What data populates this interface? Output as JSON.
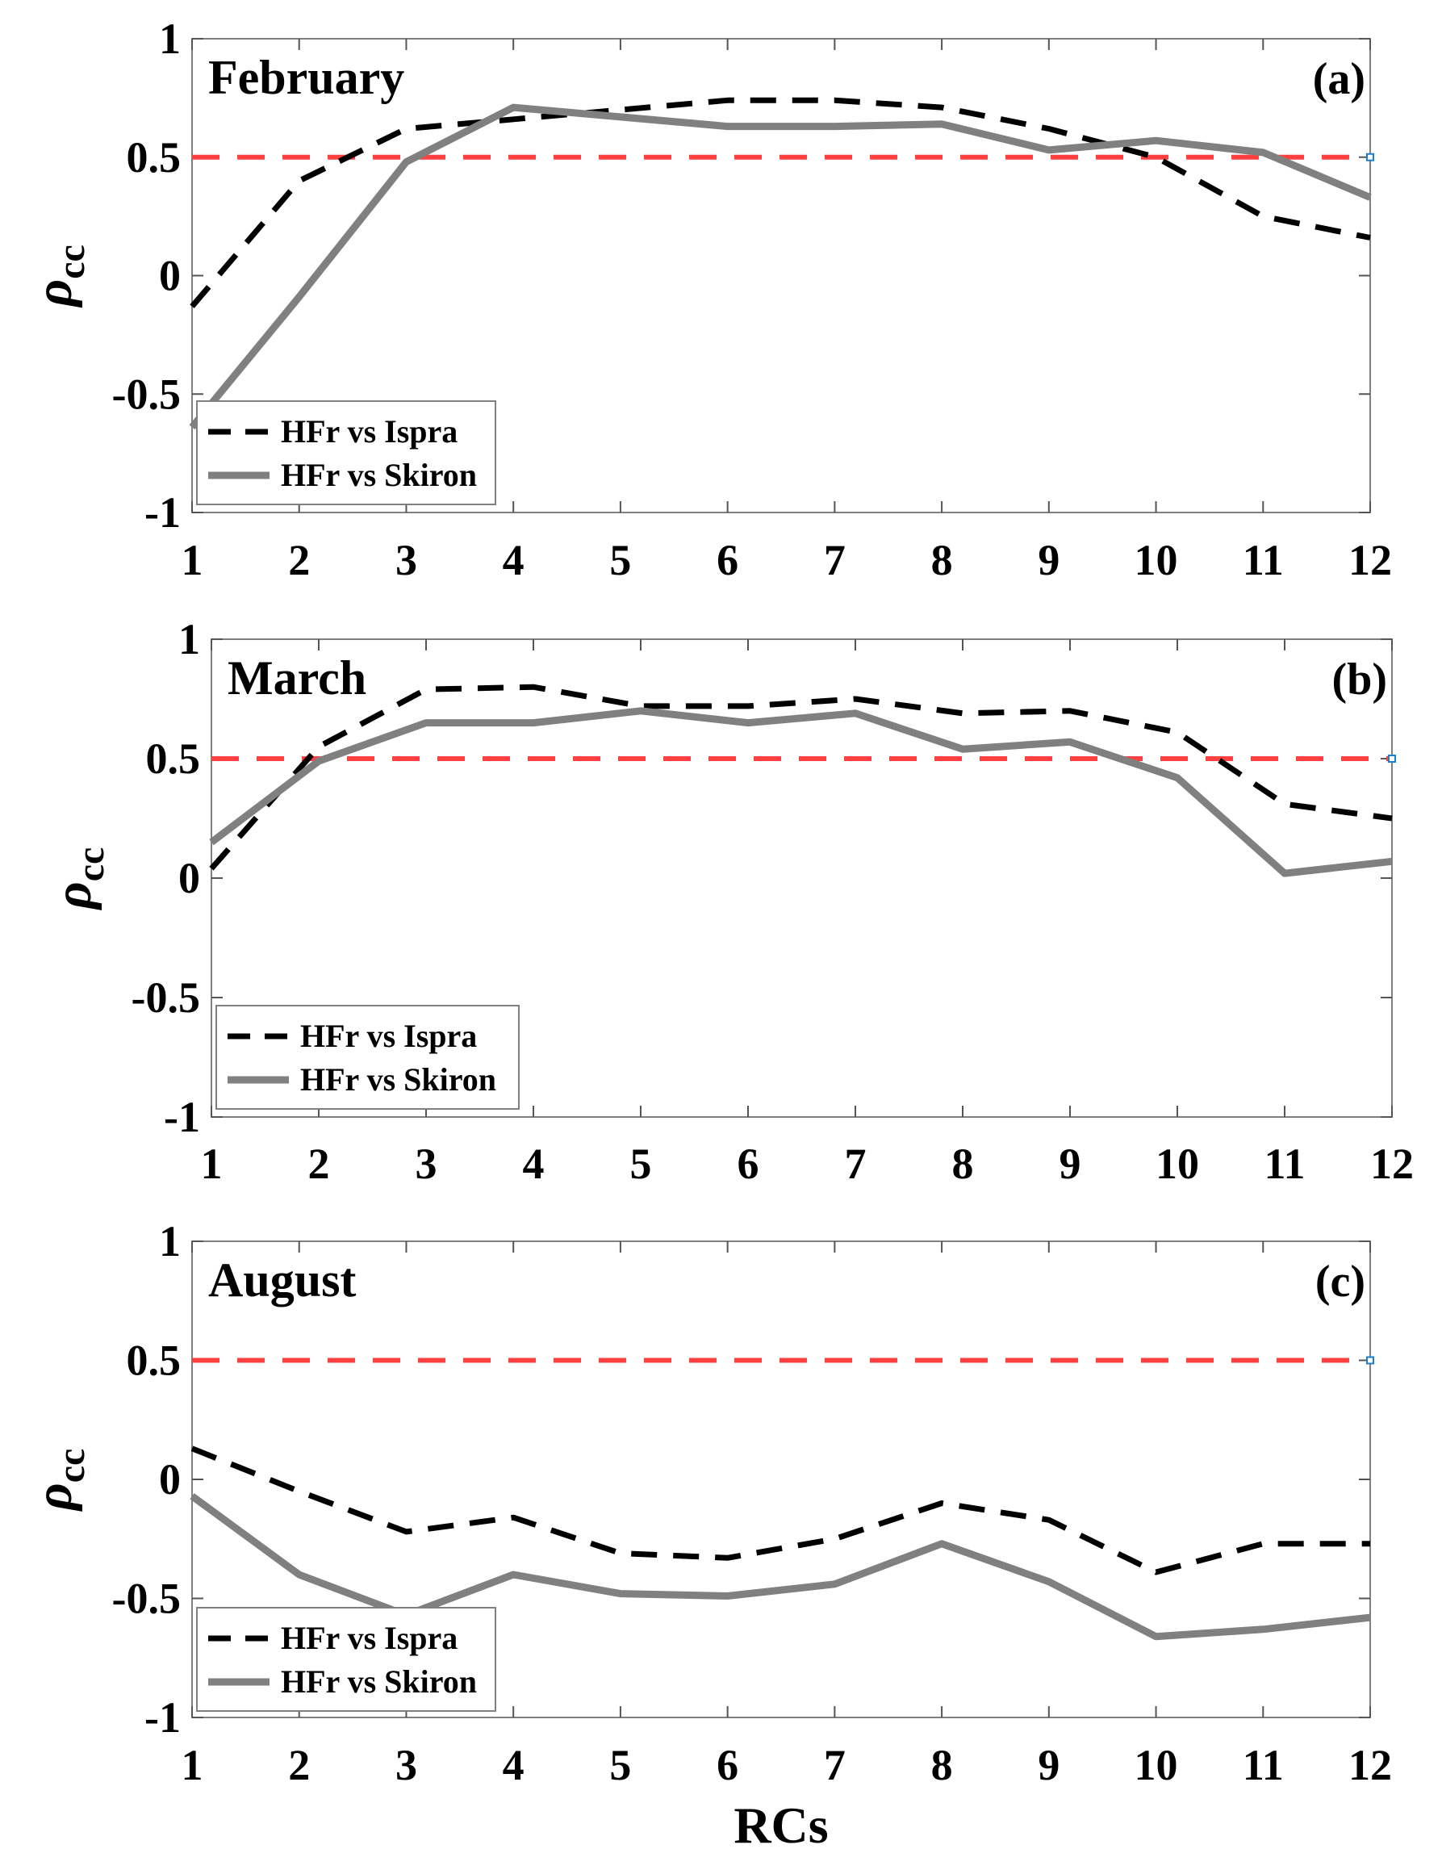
{
  "colors": {
    "ispra": "#000000",
    "skiron": "#808080",
    "threshold": "#ff4040",
    "axis": "#000000"
  },
  "chart_data": [
    {
      "type": "line",
      "panel_label": "(a)",
      "month_label": "February",
      "ylabel": "ρ",
      "ylabel_sub": "cc",
      "xlabel": "",
      "x": [
        1,
        2,
        3,
        4,
        5,
        6,
        7,
        8,
        9,
        10,
        11,
        12
      ],
      "xticks": [
        "1",
        "2",
        "3",
        "4",
        "5",
        "6",
        "7",
        "8",
        "9",
        "10",
        "11",
        "12"
      ],
      "yticks": [
        "-1",
        "-0.5",
        "0",
        "0.5",
        "1"
      ],
      "ylim": [
        -1,
        1
      ],
      "xlim": [
        1,
        12
      ],
      "threshold": 0.5,
      "legend_position": "bottom-left",
      "series": [
        {
          "name": "HFr vs Ispra",
          "style": "dashed",
          "values": [
            -0.13,
            0.4,
            0.62,
            0.66,
            0.7,
            0.74,
            0.74,
            0.71,
            0.62,
            0.5,
            0.25,
            0.16
          ]
        },
        {
          "name": "HFr vs Skiron",
          "style": "solid",
          "values": [
            -0.64,
            -0.09,
            0.48,
            0.71,
            0.67,
            0.63,
            0.63,
            0.64,
            0.53,
            0.57,
            0.52,
            0.33
          ]
        }
      ]
    },
    {
      "type": "line",
      "panel_label": "(b)",
      "month_label": "March",
      "ylabel": "ρ",
      "ylabel_sub": "cc",
      "xlabel": "",
      "x": [
        1,
        2,
        3,
        4,
        5,
        6,
        7,
        8,
        9,
        10,
        11,
        12
      ],
      "xticks": [
        "1",
        "2",
        "3",
        "4",
        "5",
        "6",
        "7",
        "8",
        "9",
        "10",
        "11",
        "12"
      ],
      "yticks": [
        "-1",
        "-0.5",
        "0",
        "0.5",
        "1"
      ],
      "ylim": [
        -1,
        1
      ],
      "xlim": [
        1,
        12
      ],
      "threshold": 0.5,
      "legend_position": "bottom-left",
      "series": [
        {
          "name": "HFr vs Ispra",
          "style": "dashed",
          "values": [
            0.04,
            0.55,
            0.79,
            0.8,
            0.72,
            0.72,
            0.75,
            0.69,
            0.7,
            0.61,
            0.31,
            0.25
          ]
        },
        {
          "name": "HFr vs Skiron",
          "style": "solid",
          "values": [
            0.15,
            0.49,
            0.65,
            0.65,
            0.7,
            0.65,
            0.69,
            0.54,
            0.57,
            0.42,
            0.02,
            0.07
          ]
        }
      ]
    },
    {
      "type": "line",
      "panel_label": "(c)",
      "month_label": "August",
      "ylabel": "ρ",
      "ylabel_sub": "cc",
      "xlabel": "RCs",
      "x": [
        1,
        2,
        3,
        4,
        5,
        6,
        7,
        8,
        9,
        10,
        11,
        12
      ],
      "xticks": [
        "1",
        "2",
        "3",
        "4",
        "5",
        "6",
        "7",
        "8",
        "9",
        "10",
        "11",
        "12"
      ],
      "yticks": [
        "-1",
        "-0.5",
        "0",
        "0.5",
        "1"
      ],
      "ylim": [
        -1,
        1
      ],
      "xlim": [
        1,
        12
      ],
      "threshold": 0.5,
      "legend_position": "bottom-left",
      "series": [
        {
          "name": "HFr vs Ispra",
          "style": "dashed",
          "values": [
            0.13,
            -0.05,
            -0.22,
            -0.16,
            -0.31,
            -0.33,
            -0.25,
            -0.1,
            -0.17,
            -0.39,
            -0.27,
            -0.27
          ]
        },
        {
          "name": "HFr vs Skiron",
          "style": "solid",
          "values": [
            -0.07,
            -0.4,
            -0.57,
            -0.4,
            -0.48,
            -0.49,
            -0.44,
            -0.27,
            -0.43,
            -0.66,
            -0.63,
            -0.58
          ]
        }
      ]
    }
  ]
}
